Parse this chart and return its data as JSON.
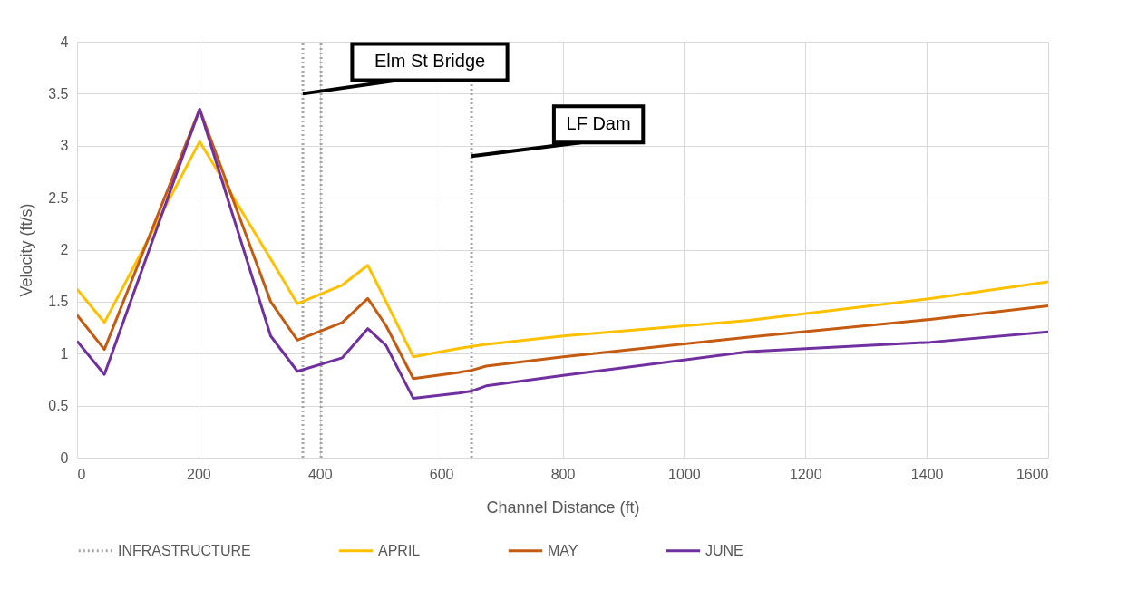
{
  "chart_data": {
    "type": "line",
    "xlabel": "Channel Distance (ft)",
    "ylabel": "Velocity (ft/s)",
    "x": [
      0,
      45,
      202,
      319,
      363,
      437,
      479,
      509,
      554,
      629,
      650,
      674,
      801,
      1107,
      1406,
      1600
    ],
    "series": [
      {
        "name": "INFRASTRUCTURE",
        "color": "#a6a6a6",
        "line_style": "dotted",
        "x": [
          372,
          372,
          null,
          402,
          402,
          null,
          650,
          650
        ],
        "values": [
          0,
          4,
          null,
          0,
          4,
          null,
          0,
          3.63
        ]
      },
      {
        "name": "APRIL",
        "color": "#ffc000",
        "values": [
          1.62,
          1.3,
          3.04,
          1.91,
          1.48,
          1.66,
          1.85,
          1.5,
          0.97,
          1.05,
          1.07,
          1.09,
          1.17,
          1.32,
          1.53,
          1.69
        ]
      },
      {
        "name": "MAY",
        "color": "#c55a11",
        "values": [
          1.37,
          1.04,
          3.35,
          1.5,
          1.13,
          1.3,
          1.53,
          1.27,
          0.76,
          0.82,
          0.84,
          0.88,
          0.97,
          1.16,
          1.33,
          1.46
        ]
      },
      {
        "name": "JUNE",
        "color": "#7030a0",
        "values": [
          1.12,
          0.8,
          3.35,
          1.17,
          0.83,
          0.96,
          1.24,
          1.08,
          0.57,
          0.62,
          0.64,
          0.69,
          0.79,
          1.02,
          1.11,
          1.21
        ]
      }
    ],
    "annotations": [
      {
        "text": "Elm St Bridge",
        "x": 372,
        "y": 3.5
      },
      {
        "text": "LF Dam",
        "x": 650,
        "y": 2.9
      }
    ],
    "xlim": [
      0,
      1600
    ],
    "xticks": [
      0,
      200,
      400,
      600,
      800,
      1000,
      1200,
      1400,
      1600
    ],
    "ylim": [
      0,
      4
    ],
    "yticks": [
      0,
      0.5,
      1,
      1.5,
      2,
      2.5,
      3,
      3.5,
      4
    ],
    "grid": true,
    "legend": "bottom",
    "line_style": "solid",
    "marker": "none"
  }
}
